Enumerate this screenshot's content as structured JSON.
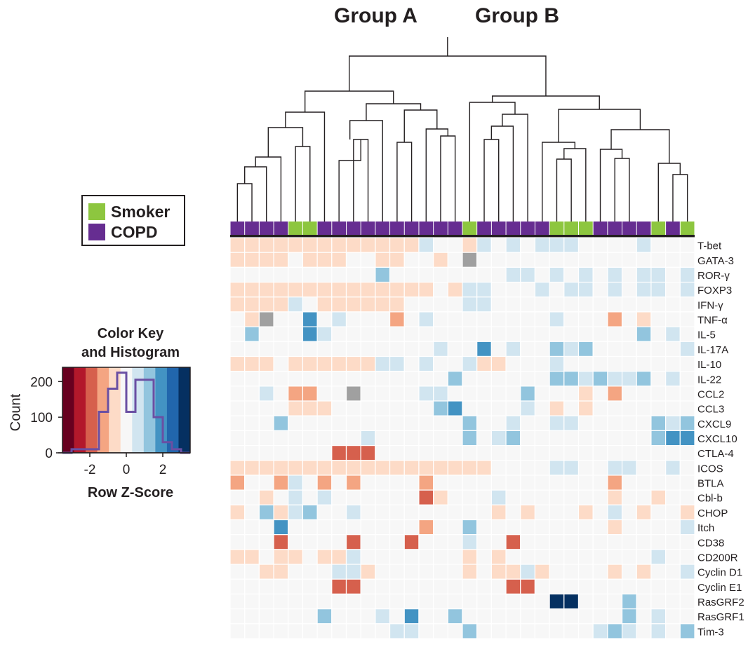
{
  "chart_data": [
    {
      "type": "heatmap",
      "title": "",
      "column_groups": [
        "Group A",
        "Group B"
      ],
      "group_a_label": "Group A",
      "group_b_label": "Group B",
      "row_labels": [
        "T-bet",
        "GATA-3",
        "ROR-γ",
        "FOXP3",
        "IFN-γ",
        "TNF-α",
        "IL-5",
        "IL-17A",
        "IL-10",
        "IL-22",
        "CCL2",
        "CCL3",
        "CXCL9",
        "CXCL10",
        "CTLA-4",
        "ICOS",
        "BTLA",
        "Cbl-b",
        "CHOP",
        "Itch",
        "CD38",
        "CD200R",
        "Cyclin D1",
        "Cyclin E1",
        "RasGRF2",
        "RasGRF1",
        "Tim-3"
      ],
      "column_annotation": [
        "COPD",
        "COPD",
        "COPD",
        "COPD",
        "Smoker",
        "Smoker",
        "COPD",
        "COPD",
        "COPD",
        "COPD",
        "COPD",
        "COPD",
        "COPD",
        "COPD",
        "COPD",
        "COPD",
        "Smoker",
        "COPD",
        "COPD",
        "COPD",
        "COPD",
        "COPD",
        "Smoker",
        "Smoker",
        "Smoker",
        "COPD",
        "COPD",
        "COPD",
        "COPD",
        "Smoker",
        "COPD",
        "Smoker"
      ],
      "annotation_legend": [
        {
          "label": "Smoker",
          "color": "#8dc63f"
        },
        {
          "label": "COPD",
          "color": "#662d91"
        }
      ],
      "missing_color": "#a0a0a0",
      "values": [
        [
          0.8,
          0.8,
          0.8,
          0.8,
          0.8,
          0.8,
          0.8,
          0.8,
          0.8,
          0.8,
          0.8,
          0.8,
          0.8,
          -0.8,
          -0.3,
          -0.3,
          0.8,
          -0.8,
          0.3,
          -0.8,
          -0.3,
          -0.8,
          -0.8,
          -0.8,
          -0.3,
          -0.3,
          -0.3,
          -0.3,
          -0.8,
          0,
          -0.3,
          -0.3
        ],
        [
          0.8,
          0.8,
          0.8,
          0.8,
          -0.3,
          0.8,
          0.8,
          0.8,
          -0.3,
          -0.3,
          0.8,
          0.8,
          -0.3,
          -0.3,
          0.8,
          -0.3,
          null,
          -0.3,
          -0.3,
          -0.3,
          -0.3,
          -0.3,
          -0.3,
          -0.3,
          -0.3,
          -0.3,
          -0.3,
          -0.3,
          -0.3,
          -0.3,
          -0.3,
          -0.3
        ],
        [
          0.3,
          0.3,
          0.3,
          0.3,
          0.3,
          0.3,
          0.3,
          0.3,
          0.3,
          0.3,
          -1.5,
          0.3,
          0.3,
          0.3,
          0.3,
          0.3,
          -0.3,
          -0.3,
          -0.3,
          -0.8,
          -0.8,
          -0.3,
          -0.8,
          -0.3,
          -0.8,
          -0.3,
          -0.8,
          -0.3,
          -0.8,
          -0.8,
          -0.3,
          -0.8
        ],
        [
          0.8,
          0.8,
          0.8,
          0.8,
          0.8,
          0.8,
          0.8,
          0.8,
          0.8,
          0.8,
          0.8,
          0.8,
          0.8,
          0.8,
          -0.3,
          0.8,
          -0.8,
          -0.8,
          -0.3,
          -0.3,
          -0.3,
          -0.8,
          -0.3,
          -0.8,
          -0.8,
          -0.3,
          -0.8,
          -0.3,
          -0.8,
          -0.8,
          -0.3,
          -0.8
        ],
        [
          0.8,
          0.8,
          0.8,
          0.8,
          -0.8,
          -0.3,
          0.8,
          0.8,
          0.8,
          0.8,
          0.8,
          0.8,
          -0.3,
          -0.3,
          0,
          -0.3,
          -0.8,
          -0.8,
          -0.3,
          -0.3,
          -0.3,
          -0.3,
          -0.3,
          -0.3,
          -0.3,
          -0.3,
          -0.3,
          0.3,
          -0.3,
          -0.3,
          -0.3,
          -0.3
        ],
        [
          0.3,
          0.8,
          null,
          0.3,
          -0.3,
          -2,
          0.3,
          -0.8,
          0,
          0,
          0.3,
          1.5,
          0.3,
          -0.8,
          0.3,
          0.3,
          -0.3,
          -0.3,
          -0.3,
          -0.3,
          0.3,
          -0.3,
          -0.8,
          -0.3,
          0.3,
          -0.3,
          1.5,
          -0.3,
          0.8,
          0.3,
          -0.3,
          -0.3
        ],
        [
          0.3,
          -1.5,
          0.3,
          0.3,
          0.3,
          -2,
          -0.8,
          0.3,
          0.3,
          0.3,
          0.3,
          0.3,
          0.3,
          0.3,
          0.3,
          0.3,
          0.3,
          0.3,
          0.3,
          0.3,
          0.3,
          0.3,
          0.3,
          0.3,
          0.3,
          0.3,
          0.3,
          0.3,
          -1.5,
          0.3,
          -0.8,
          -0.3
        ],
        [
          0.3,
          0.3,
          0.3,
          0.3,
          0.3,
          0.3,
          0.3,
          0.3,
          0.3,
          0.3,
          0.3,
          0.3,
          0.3,
          0.3,
          -0.8,
          0.3,
          0.3,
          -2,
          -0.3,
          -0.8,
          -0.3,
          -0.3,
          -1.5,
          -0.8,
          -1.5,
          -0.3,
          -0.3,
          -0.3,
          -0.3,
          -0.3,
          -0.3,
          -0.8
        ],
        [
          0.8,
          0.8,
          0.8,
          -0.3,
          0.8,
          0.8,
          0.8,
          0.8,
          0.8,
          0.8,
          -0.8,
          -0.8,
          -0.3,
          -0.8,
          -0.3,
          -0.3,
          -0.8,
          0.8,
          0.8,
          -0.3,
          -0.3,
          -0.3,
          -0.8,
          -0.3,
          -0.3,
          -0.3,
          -0.3,
          -0.3,
          -0.3,
          -0.3,
          -0.3,
          -0.3
        ],
        [
          0.3,
          0.3,
          0.3,
          0.3,
          0.3,
          0.3,
          0.3,
          0.3,
          0.3,
          0.3,
          0.3,
          0.3,
          0.3,
          0.3,
          0.3,
          -1.5,
          0.3,
          0.3,
          0.3,
          0.3,
          0.3,
          0.3,
          -1.5,
          -1.5,
          -0.8,
          -1.5,
          -0.8,
          -0.8,
          -1.5,
          -0.3,
          -0.8,
          -0.3
        ],
        [
          -0.3,
          -0.3,
          -0.8,
          -0.3,
          1.5,
          1.5,
          -0.3,
          -0.3,
          null,
          -0.3,
          -0.3,
          -0.3,
          -0.3,
          -0.8,
          -0.8,
          -0.3,
          0.3,
          0.3,
          0.3,
          0.3,
          -1.5,
          -0.3,
          0.3,
          -0.3,
          0.8,
          -0.3,
          1.5,
          -0.3,
          0.3,
          -0.3,
          -0.3,
          0.3
        ],
        [
          0.3,
          -0.3,
          0.3,
          0.3,
          0.8,
          0.8,
          0.8,
          -0.3,
          -0.3,
          -0.3,
          -0.3,
          -0.3,
          -0.3,
          -0.3,
          -1.5,
          -2,
          0.3,
          0,
          -0.3,
          -0.3,
          -0.8,
          -0.3,
          0.8,
          0.3,
          0.8,
          -0.3,
          -0.3,
          -0.3,
          -0.3,
          0,
          -0.3,
          -0.3
        ],
        [
          0.3,
          0.3,
          0.3,
          -1.5,
          0.3,
          0.3,
          0.3,
          0.3,
          0.3,
          0.3,
          0.3,
          0.3,
          0.3,
          0.3,
          0.3,
          0.3,
          -1.5,
          -0.3,
          -0.3,
          -0.8,
          -0.3,
          -0.3,
          -0.8,
          -0.8,
          -0.3,
          -0.3,
          -0.3,
          -0.3,
          -0.3,
          -1.5,
          -0.8,
          -1.5
        ],
        [
          0.3,
          0.3,
          0.3,
          0.3,
          0.3,
          0.3,
          0.3,
          0.3,
          0.3,
          -0.8,
          0.3,
          0.3,
          0.3,
          0.3,
          0.3,
          0.3,
          -1.5,
          0.3,
          -0.8,
          -1.5,
          -0.3,
          -0.3,
          -0.3,
          0,
          -0.3,
          -0.3,
          -0.3,
          -0.3,
          -0.3,
          -1.5,
          -1.7,
          -2
        ],
        [
          0,
          0,
          0,
          0,
          0,
          0,
          0,
          2.2,
          2.2,
          2.2,
          0,
          0,
          0,
          0.3,
          0,
          0,
          0,
          0,
          0,
          0,
          0,
          0,
          0,
          0,
          0,
          0,
          0,
          0,
          0,
          0,
          0,
          -0.3
        ],
        [
          0.8,
          0.8,
          0.8,
          0.8,
          0.8,
          0.8,
          0.8,
          0.8,
          0.8,
          0.8,
          0.8,
          0.8,
          0.8,
          0.8,
          0.8,
          0.8,
          0.8,
          0.8,
          -0.3,
          -0.3,
          -0.3,
          -0.3,
          -0.8,
          -0.8,
          -0.3,
          -0.3,
          -0.8,
          -0.8,
          -0.3,
          -0.3,
          -0.8,
          -0.3
        ],
        [
          1.5,
          -0.3,
          0.3,
          1.5,
          -0.8,
          -0.3,
          1.5,
          -0.3,
          1.5,
          -0.3,
          -0.3,
          -0.3,
          -0.3,
          1.5,
          -0.3,
          -0.3,
          -0.3,
          -0.3,
          -0.3,
          -0.3,
          -0.3,
          -0.3,
          -0.3,
          -0.3,
          -0.3,
          -0.3,
          1.5,
          -0.3,
          -0.3,
          -0.3,
          -0.3,
          -0.3
        ],
        [
          0.3,
          -0.3,
          0.8,
          -0.3,
          -0.8,
          0.3,
          -0.8,
          0.3,
          0,
          -0.3,
          0,
          -0.3,
          -0.3,
          2.2,
          0.8,
          -0.3,
          -0.3,
          -0.3,
          -0.8,
          -0.3,
          -0.3,
          -0.3,
          -0.3,
          -0.3,
          -0.3,
          -0.3,
          0.8,
          -0.3,
          -0.3,
          0.8,
          -0.3,
          0
        ],
        [
          0.8,
          0.3,
          -1.5,
          0.8,
          -0.8,
          -1.5,
          0.3,
          -0.3,
          -0.8,
          -0.3,
          -0.3,
          -0.3,
          -0.3,
          0.3,
          -0.3,
          -0.3,
          0,
          0,
          0.8,
          -0.3,
          0.8,
          -0.3,
          0.3,
          0,
          0.8,
          -0.3,
          -0.8,
          -0.3,
          0.8,
          0.3,
          -0.3,
          0.8
        ],
        [
          0.3,
          -0.3,
          -0.3,
          -2,
          -0.3,
          0.3,
          -0.3,
          -0.3,
          0,
          -0.3,
          -0.3,
          -0.3,
          -0.3,
          1.5,
          -0.3,
          0,
          -1.5,
          0,
          -0.3,
          -0.3,
          -0.3,
          -0.3,
          0,
          -0.3,
          -0.3,
          -0.3,
          0.8,
          -0.3,
          -0.3,
          -0.3,
          -0.3,
          -0.8
        ],
        [
          -0.3,
          0,
          -0.3,
          2.2,
          -0.3,
          -0.3,
          0,
          -0.3,
          2.2,
          -0.3,
          0,
          -0.3,
          2.2,
          -0.3,
          0,
          0,
          -0.8,
          -0.3,
          -0.3,
          2.2,
          -0.3,
          -0.3,
          -0.3,
          -0.3,
          -0.3,
          -0.3,
          -0.3,
          -0.3,
          -0.3,
          -0.3,
          -0.3,
          -0.3
        ],
        [
          0.8,
          0.8,
          -0.3,
          0.8,
          0.8,
          -0.3,
          0.8,
          0.8,
          -0.8,
          -0.3,
          -0.3,
          -0.3,
          -0.3,
          -0.3,
          -0.3,
          0,
          0.8,
          -0.3,
          0.8,
          -0.3,
          -0.3,
          -0.3,
          -0.3,
          -0.3,
          -0.3,
          0,
          0,
          0,
          -0.3,
          -0.8,
          -0.3,
          -0.3
        ],
        [
          -0.3,
          0,
          0.8,
          0.8,
          -0.3,
          0,
          -0.3,
          -0.8,
          -0.8,
          0.8,
          -0.3,
          -0.3,
          -0.3,
          -0.3,
          -0.3,
          -0.3,
          0.8,
          -0.3,
          0.8,
          0.8,
          -0.8,
          0.8,
          -0.3,
          -0.3,
          -0.3,
          -0.3,
          0.8,
          -0.3,
          0.8,
          -0.3,
          -0.3,
          -0.8
        ],
        [
          0,
          -0.3,
          0,
          -0.3,
          -0.3,
          0,
          -0.3,
          2.2,
          2.2,
          -0.3,
          0,
          -0.3,
          -0.3,
          0,
          -0.3,
          0,
          -0.3,
          -0.3,
          -0.3,
          2.2,
          2.2,
          -0.3,
          -0.3,
          -0.3,
          -0.3,
          -0.3,
          -0.3,
          -0.3,
          -0.3,
          -0.3,
          -0.3,
          -0.3
        ],
        [
          0,
          0,
          0,
          0,
          0,
          0,
          0,
          0,
          0,
          0,
          0,
          0,
          0,
          0,
          0,
          0,
          0,
          0,
          0,
          0,
          0,
          -0.3,
          -3,
          -3,
          -0.3,
          0,
          0,
          -1.5,
          0,
          0,
          0,
          0
        ],
        [
          0.3,
          0.3,
          0.3,
          0.3,
          0.3,
          0.3,
          -1.5,
          0.3,
          0.3,
          0.3,
          -0.8,
          0.3,
          -2,
          0.3,
          0.3,
          -1.5,
          0.3,
          -0.3,
          0.3,
          0.3,
          0.3,
          0.3,
          0.3,
          0.3,
          0.3,
          0.3,
          0.3,
          -1.5,
          0.3,
          -0.8,
          0.3,
          -0.3
        ],
        [
          0.3,
          0.3,
          0.3,
          0.3,
          0.3,
          0.3,
          0.3,
          0.3,
          0.3,
          0.3,
          0.3,
          -0.8,
          -0.8,
          0.3,
          0.3,
          0.3,
          -1.5,
          0.3,
          0.3,
          0.3,
          0.3,
          0.3,
          0.3,
          0.3,
          0.3,
          -0.8,
          -1.5,
          -0.8,
          -0.3,
          -0.8,
          -0.3,
          -1.5
        ]
      ]
    },
    {
      "type": "histogram",
      "title": "Color Key\nand Histogram",
      "xlabel": "Row Z-Score",
      "ylabel": "Count",
      "xlim": [
        -3.5,
        3.5
      ],
      "ylim": [
        0,
        240
      ],
      "xticks": [
        -2,
        0,
        2
      ],
      "yticks": [
        0,
        100,
        200
      ],
      "bin_edges": [
        -3.5,
        -3.0,
        -2.5,
        -2.0,
        -1.5,
        -1.0,
        -0.5,
        0.0,
        0.5,
        1.0,
        1.5,
        2.0,
        2.5,
        3.0,
        3.5
      ],
      "counts": [
        0,
        10,
        10,
        10,
        115,
        180,
        225,
        115,
        205,
        205,
        100,
        30,
        10,
        0
      ],
      "color_key": [
        "#67001f",
        "#b2182b",
        "#d6604d",
        "#f4a582",
        "#fddbc7",
        "#f7f7f7",
        "#d1e5f0",
        "#92c5de",
        "#4393c3",
        "#2166ac",
        "#053061"
      ],
      "histogram_line_color": "#6a4fa3"
    }
  ]
}
